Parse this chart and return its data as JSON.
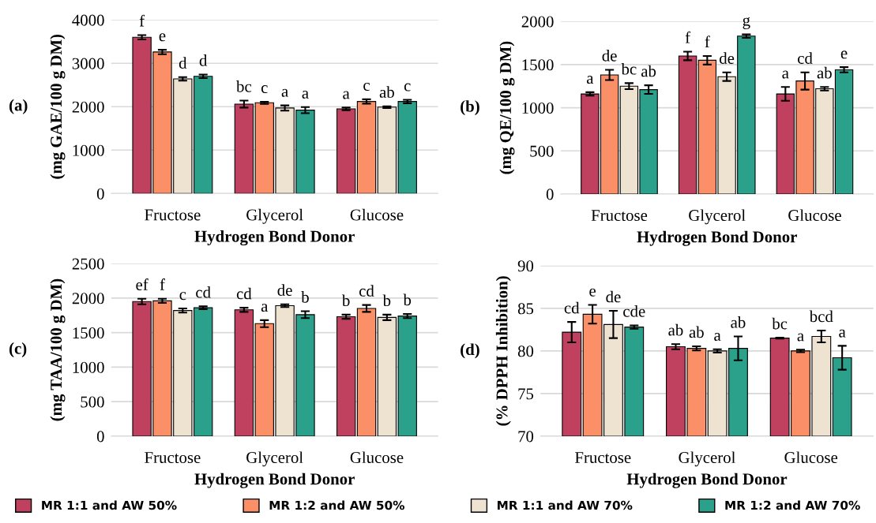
{
  "chart_data": [
    {
      "type": "bar",
      "annotations": [
        "(a)"
      ],
      "xlabel": "Hydrogen Bond Donor",
      "ylabel": "(mg GAE/100 g DM)",
      "categories": [
        "Fructose",
        "Glycerol",
        "Glucose"
      ],
      "ylim": [
        0,
        4000
      ],
      "yticks": [
        0,
        1000,
        2000,
        3000,
        4000
      ],
      "grid": "y",
      "legend": "bottom",
      "series": [
        {
          "name": "MR 1:1 and AW 50%",
          "color": "#c0415f",
          "values": [
            3600,
            2060,
            1950
          ],
          "errors": [
            50,
            80,
            30
          ],
          "value_labels": [
            "f",
            "bc",
            "a"
          ]
        },
        {
          "name": "MR 1:2 and AW 50%",
          "color": "#fb9068",
          "values": [
            3260,
            2090,
            2120
          ],
          "errors": [
            50,
            25,
            50
          ],
          "value_labels": [
            "e",
            "c",
            "c"
          ]
        },
        {
          "name": "MR 1:1 and AW 70%",
          "color": "#ede3d0",
          "values": [
            2640,
            1970,
            1990
          ],
          "errors": [
            40,
            60,
            20
          ],
          "value_labels": [
            "d",
            "a",
            "ab"
          ]
        },
        {
          "name": "MR 1:2 and AW 70%",
          "color": "#2ba08a",
          "values": [
            2700,
            1920,
            2120
          ],
          "errors": [
            40,
            70,
            40
          ],
          "value_labels": [
            "d",
            "a",
            "c"
          ]
        }
      ]
    },
    {
      "type": "bar",
      "annotations": [
        "(b)"
      ],
      "xlabel": "Hydrogen Bond Donor",
      "ylabel": "(mg QE/100 g DM)",
      "categories": [
        "Fructose",
        "Glycerol",
        "Glucose"
      ],
      "ylim": [
        0,
        2000
      ],
      "yticks": [
        0,
        500,
        1000,
        1500,
        2000
      ],
      "grid": "y",
      "series": [
        {
          "color": "#c0415f",
          "values": [
            1160,
            1600,
            1160
          ],
          "errors": [
            20,
            50,
            80
          ],
          "value_labels": [
            "a",
            "f",
            "a"
          ]
        },
        {
          "color": "#fb9068",
          "values": [
            1380,
            1550,
            1310
          ],
          "errors": [
            60,
            50,
            100
          ],
          "value_labels": [
            "de",
            "f",
            "cd"
          ]
        },
        {
          "color": "#ede3d0",
          "values": [
            1250,
            1360,
            1220
          ],
          "errors": [
            35,
            50,
            20
          ],
          "value_labels": [
            "bc",
            "de",
            "ab"
          ]
        },
        {
          "color": "#2ba08a",
          "values": [
            1210,
            1830,
            1440
          ],
          "errors": [
            50,
            20,
            30
          ],
          "value_labels": [
            "ab",
            "g",
            "e"
          ]
        }
      ]
    },
    {
      "type": "bar",
      "annotations": [
        "(c)"
      ],
      "xlabel": "Hydrogen Bond Donor",
      "ylabel": "(mg TAA/100 g DM)",
      "categories": [
        "Fructose",
        "Glycerol",
        "Glucose"
      ],
      "ylim": [
        0,
        2500
      ],
      "yticks": [
        0,
        500,
        1000,
        1500,
        2000,
        2500
      ],
      "grid": "y",
      "series": [
        {
          "color": "#c0415f",
          "values": [
            1950,
            1830,
            1730
          ],
          "errors": [
            40,
            30,
            30
          ],
          "value_labels": [
            "ef",
            "cd",
            "b"
          ]
        },
        {
          "color": "#fb9068",
          "values": [
            1960,
            1630,
            1850
          ],
          "errors": [
            30,
            50,
            50
          ],
          "value_labels": [
            "f",
            "a",
            "cd"
          ]
        },
        {
          "color": "#ede3d0",
          "values": [
            1820,
            1890,
            1720
          ],
          "errors": [
            30,
            20,
            40
          ],
          "value_labels": [
            "c",
            "de",
            "b"
          ]
        },
        {
          "color": "#2ba08a",
          "values": [
            1860,
            1760,
            1740
          ],
          "errors": [
            20,
            50,
            30
          ],
          "value_labels": [
            "cd",
            "b",
            "b"
          ]
        }
      ]
    },
    {
      "type": "bar",
      "annotations": [
        "(d)"
      ],
      "xlabel": "Hydrogen Bond Donor",
      "ylabel": "(% DPPH Inhibition)",
      "categories": [
        "Fructose",
        "Glycerol",
        "Glucose"
      ],
      "ylim": [
        70,
        90
      ],
      "yticks": [
        70,
        75,
        80,
        85,
        90
      ],
      "grid": "y",
      "series": [
        {
          "color": "#c0415f",
          "values": [
            82.2,
            80.5,
            81.5
          ],
          "errors": [
            1.2,
            0.3,
            0.05
          ],
          "value_labels": [
            "cd",
            "ab",
            "bc"
          ]
        },
        {
          "color": "#fb9068",
          "values": [
            84.3,
            80.3,
            80.0
          ],
          "errors": [
            1.1,
            0.25,
            0.15
          ],
          "value_labels": [
            "e",
            "ab",
            "a"
          ]
        },
        {
          "color": "#ede3d0",
          "values": [
            83.1,
            80.0,
            81.7
          ],
          "errors": [
            1.6,
            0.2,
            0.7
          ],
          "value_labels": [
            "de",
            "a",
            "bcd"
          ]
        },
        {
          "color": "#2ba08a",
          "values": [
            82.8,
            80.3,
            79.2
          ],
          "errors": [
            0.2,
            1.4,
            1.4
          ],
          "value_labels": [
            "cde",
            "ab",
            "a"
          ]
        }
      ]
    }
  ]
}
